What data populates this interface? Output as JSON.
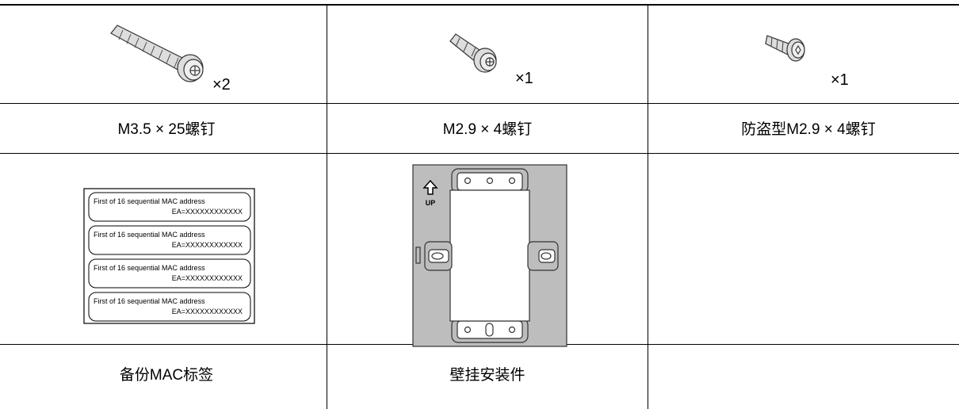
{
  "accessories": [
    {
      "quantity": "×2",
      "name": "M3.5 × 25螺钉"
    },
    {
      "quantity": "×1",
      "name": "M2.9 × 4螺钉"
    },
    {
      "quantity": "×1",
      "name": "防盗型M2.9 × 4螺钉"
    }
  ],
  "parts": [
    {
      "name": "备份MAC标签",
      "labels": [
        {
          "line1": "First of 16 sequential MAC address",
          "line2": "EA=XXXXXXXXXXXX"
        },
        {
          "line1": "First of 16 sequential MAC address",
          "line2": "EA=XXXXXXXXXXXX"
        },
        {
          "line1": "First of 16 sequential MAC address",
          "line2": "EA=XXXXXXXXXXXX"
        },
        {
          "line1": "First of 16 sequential MAC address",
          "line2": "EA=XXXXXXXXXXXX"
        }
      ]
    },
    {
      "name": "壁挂安装件",
      "mark": "UP"
    }
  ]
}
